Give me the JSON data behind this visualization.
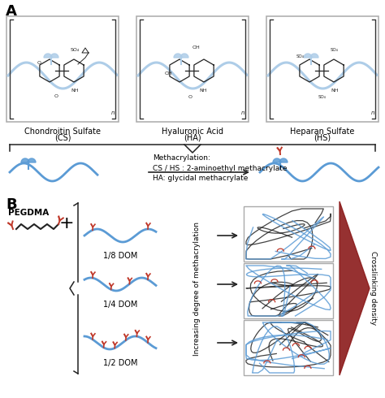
{
  "bg_color": "#ffffff",
  "section_a_label": "A",
  "section_b_label": "B",
  "mol_names_line1": [
    "Chondroitin Sulfate",
    "Hyaluronic Acid",
    "Heparan Sulfate"
  ],
  "mol_names_line2": [
    "(CS)",
    "(HA)",
    "(HS)"
  ],
  "methacrylation_text": "Methacrylation:\nCS / HS : 2-aminoethyl methacrylate\nHA: glycidal methacrylate",
  "pegdma_label": "PEGDMA",
  "dom_labels": [
    "1/8 DOM",
    "1/4 DOM",
    "1/2 DOM"
  ],
  "increasing_text": "Increasing degree of methacrylation",
  "crosslinking_text": "Crosslinking density",
  "blue_color": "#5b9bd5",
  "light_blue": "#aecde8",
  "red_color": "#c0392b",
  "dark_color": "#222222",
  "gray_color": "#888888",
  "box_edge": "#999999"
}
